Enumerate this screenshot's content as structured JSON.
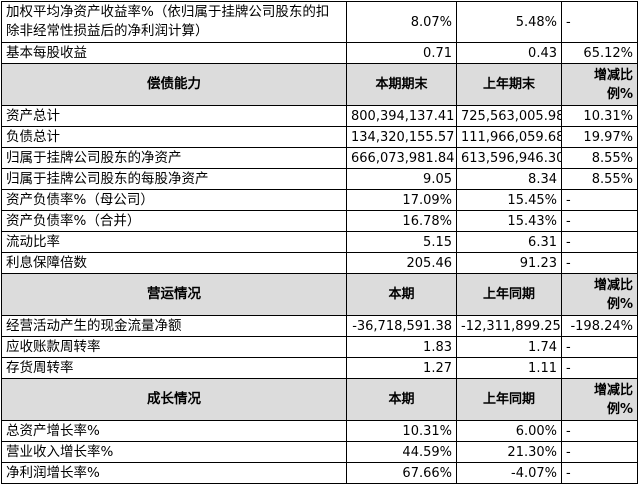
{
  "table": {
    "top_rows": [
      [
        "加权平均净资产收益率%（依归属于挂牌公司股东的扣除非经常性损益后的净利润计算）",
        "8.07%",
        "5.48%",
        "-"
      ],
      [
        "基本每股收益",
        "0.71",
        "0.43",
        "65.12%"
      ]
    ],
    "sections": [
      {
        "header": [
          "偿债能力",
          "本期期末",
          "上年期末",
          "增减比例%"
        ],
        "rows": [
          [
            "资产总计",
            "800,394,137.41",
            "725,563,005.98",
            "10.31%"
          ],
          [
            "负债总计",
            "134,320,155.57",
            "111,966,059.68",
            "19.97%"
          ],
          [
            "归属于挂牌公司股东的净资产",
            "666,073,981.84",
            "613,596,946.30",
            "8.55%"
          ],
          [
            "归属于挂牌公司股东的每股净资产",
            "9.05",
            "8.34",
            "8.55%"
          ],
          [
            "资产负债率%（母公司）",
            "17.09%",
            "15.45%",
            "-"
          ],
          [
            "资产负债率%（合并）",
            "16.78%",
            "15.43%",
            "-"
          ],
          [
            "流动比率",
            "5.15",
            "6.31",
            "-"
          ],
          [
            "利息保障倍数",
            "205.46",
            "91.23",
            "-"
          ]
        ]
      },
      {
        "header": [
          "营运情况",
          "本期",
          "上年同期",
          "增减比例%"
        ],
        "rows": [
          [
            "经营活动产生的现金流量净额",
            "-36,718,591.38",
            "-12,311,899.25",
            "-198.24%"
          ],
          [
            "应收账款周转率",
            "1.83",
            "1.74",
            "-"
          ],
          [
            "存货周转率",
            "1.27",
            "1.11",
            "-"
          ]
        ]
      },
      {
        "header": [
          "成长情况",
          "本期",
          "上年同期",
          "增减比例%"
        ],
        "rows": [
          [
            "总资产增长率%",
            "10.31%",
            "6.00%",
            "-"
          ],
          [
            "营业收入增长率%",
            "44.59%",
            "21.30%",
            "-"
          ],
          [
            "净利润增长率%",
            "67.66%",
            "-4.07%",
            "-"
          ]
        ]
      }
    ]
  }
}
